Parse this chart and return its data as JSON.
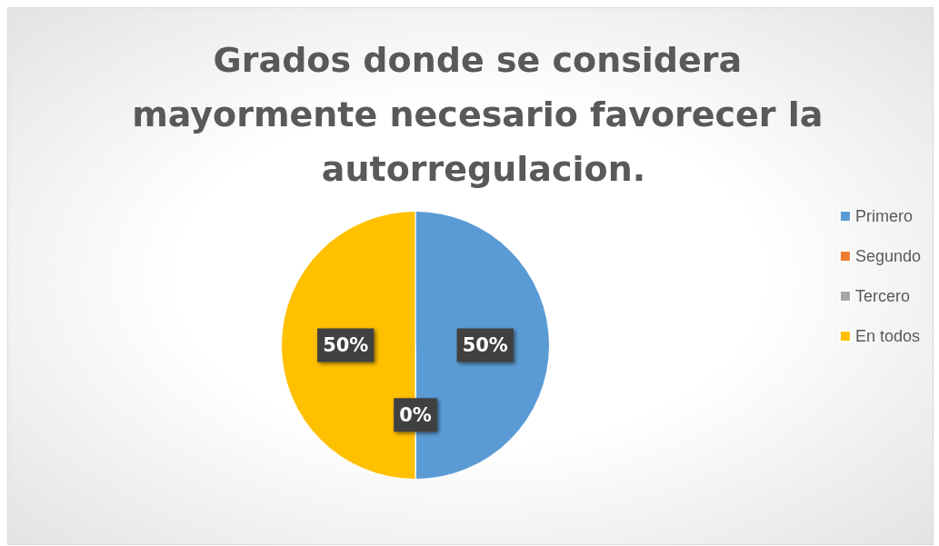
{
  "chart_data": {
    "type": "pie",
    "title": "Grados donde se considera mayormente necesario favorecer la autorregulacion.",
    "categories": [
      "Primero",
      "Segundo",
      "Tercero",
      "En todos"
    ],
    "values": [
      50,
      0,
      0,
      50
    ],
    "colors": [
      "#5b9bd5",
      "#ed7d31",
      "#a5a5a5",
      "#ffc000"
    ],
    "value_labels": [
      "50%",
      "0%",
      null,
      "50%"
    ],
    "legend": "right"
  }
}
